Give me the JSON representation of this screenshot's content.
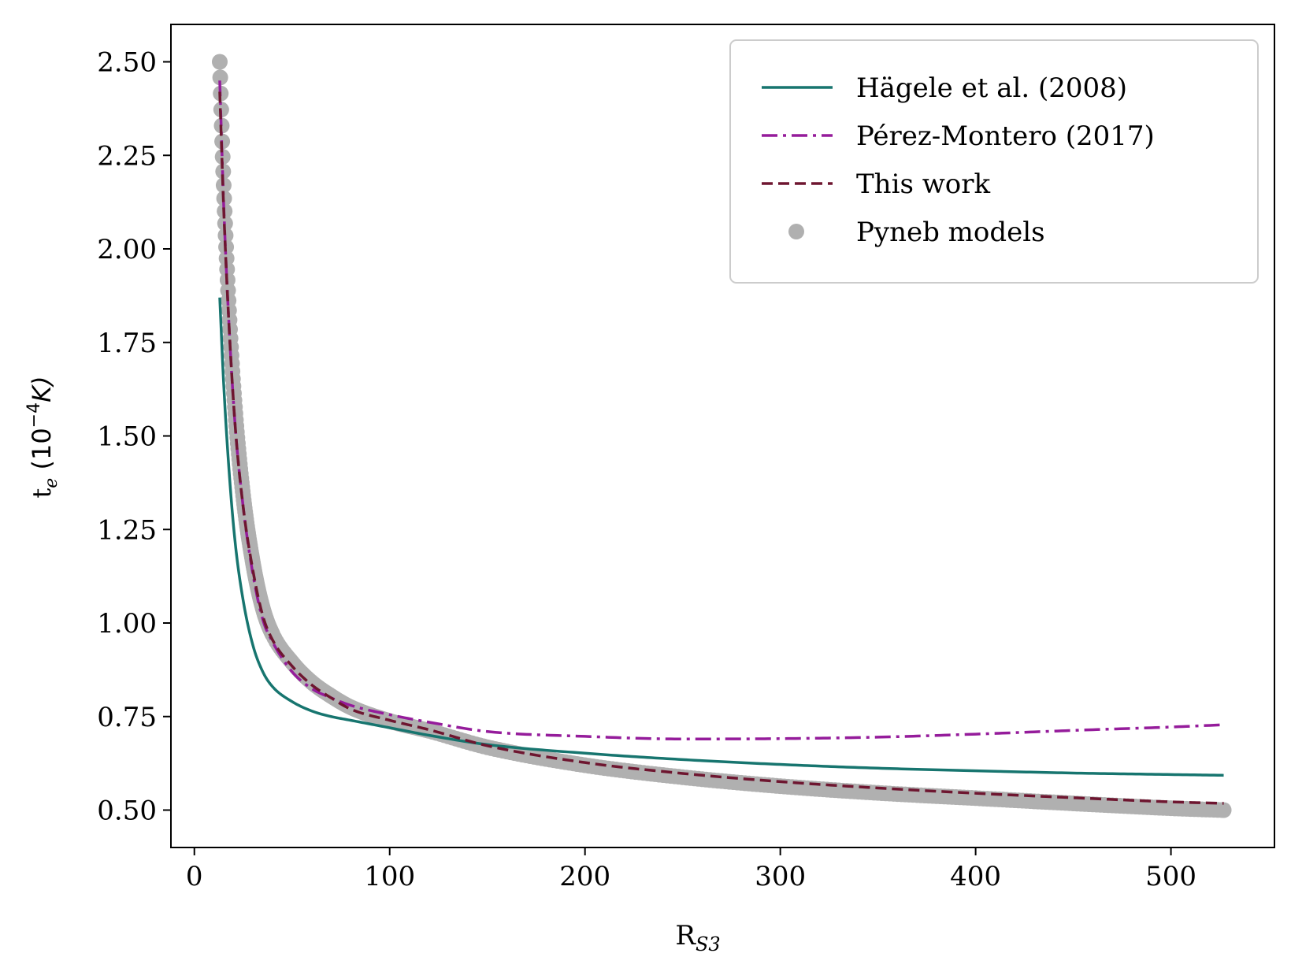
{
  "chart_data": {
    "type": "line",
    "title": "",
    "xlabel": "R",
    "xlabel_sub": "S3",
    "ylabel": "t",
    "ylabel_sub": "e",
    "ylabel_unit_prefix": "(10",
    "ylabel_unit_exp": "−4",
    "ylabel_unit_suffix": "K)",
    "xlim": [
      -12,
      553
    ],
    "ylim": [
      0.4,
      2.6
    ],
    "xticks": [
      0,
      100,
      200,
      300,
      400,
      500
    ],
    "xtick_labels": [
      "0",
      "100",
      "200",
      "300",
      "400",
      "500"
    ],
    "yticks": [
      0.5,
      0.75,
      1.0,
      1.25,
      1.5,
      1.75,
      2.0,
      2.25,
      2.5
    ],
    "ytick_labels": [
      "0.50",
      "0.75",
      "1.00",
      "1.25",
      "1.50",
      "1.75",
      "2.00",
      "2.25",
      "2.50"
    ],
    "grid": false,
    "legend_position": "top-right",
    "x": [
      13,
      15,
      18,
      21,
      25,
      30,
      35,
      40,
      50,
      60,
      70,
      80,
      100,
      120,
      150,
      200,
      250,
      300,
      350,
      400,
      450,
      500,
      527
    ],
    "series": [
      {
        "name": "Hägele et al. (2008)",
        "style": "solid",
        "color": "#17756f",
        "values": [
          1.87,
          1.64,
          1.39,
          1.21,
          1.06,
          0.94,
          0.87,
          0.83,
          0.79,
          0.765,
          0.75,
          0.74,
          0.72,
          0.7,
          0.675,
          0.652,
          0.635,
          0.622,
          0.612,
          0.605,
          0.599,
          0.595,
          0.593
        ]
      },
      {
        "name": "Pérez-Montero (2017)",
        "style": "dashdot",
        "color": "#951c9b",
        "values": [
          2.45,
          2.12,
          1.77,
          1.52,
          1.31,
          1.13,
          1.01,
          0.95,
          0.87,
          0.825,
          0.8,
          0.78,
          0.755,
          0.735,
          0.71,
          0.697,
          0.69,
          0.691,
          0.695,
          0.703,
          0.713,
          0.722,
          0.728
        ]
      },
      {
        "name": "This work",
        "style": "dashed",
        "color": "#6e1630",
        "values": [
          2.42,
          2.11,
          1.77,
          1.52,
          1.31,
          1.14,
          1.02,
          0.955,
          0.885,
          0.835,
          0.8,
          0.77,
          0.74,
          0.715,
          0.672,
          0.627,
          0.598,
          0.576,
          0.559,
          0.545,
          0.533,
          0.522,
          0.518
        ]
      },
      {
        "name": "Pyneb models",
        "style": "markers",
        "color": "#b0b0b0",
        "values": [
          2.5,
          2.17,
          1.81,
          1.56,
          1.34,
          1.16,
          1.04,
          0.97,
          0.895,
          0.842,
          0.805,
          0.775,
          0.738,
          0.712,
          0.668,
          0.62,
          0.588,
          0.564,
          0.546,
          0.532,
          0.518,
          0.505,
          0.5
        ]
      }
    ]
  }
}
